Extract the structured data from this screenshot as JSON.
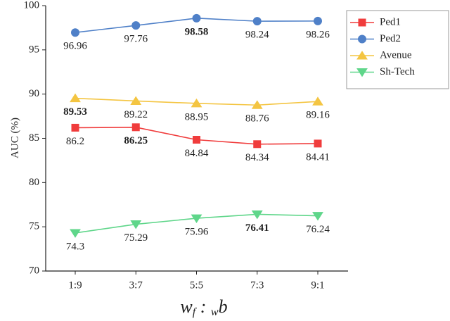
{
  "chart_data": {
    "type": "line",
    "y_label": "AUC (%)",
    "x_label_parts": [
      "w",
      "f",
      " : ",
      "w",
      "b"
    ],
    "categories": [
      "1:9",
      "3:7",
      "5:5",
      "7:3",
      "9:1"
    ],
    "series": [
      {
        "name": "Ped1",
        "color": "#f03c3c",
        "marker": "square",
        "values": [
          86.2,
          86.25,
          84.84,
          84.34,
          84.41
        ]
      },
      {
        "name": "Ped2",
        "color": "#4f80c8",
        "marker": "circle",
        "values": [
          96.96,
          97.76,
          98.58,
          98.24,
          98.26
        ]
      },
      {
        "name": "Avenue",
        "color": "#f4c542",
        "marker": "triangle-up",
        "values": [
          89.53,
          89.22,
          88.95,
          88.76,
          89.16
        ]
      },
      {
        "name": "Sh-Tech",
        "color": "#5fd68a",
        "marker": "triangle-down",
        "values": [
          74.3,
          75.29,
          75.96,
          76.41,
          76.24
        ]
      }
    ],
    "ylim": [
      70,
      100
    ],
    "yticks": [
      70,
      75,
      80,
      85,
      90,
      95,
      100
    ],
    "grid": false,
    "legend": "upper right",
    "highlight_max": true
  }
}
